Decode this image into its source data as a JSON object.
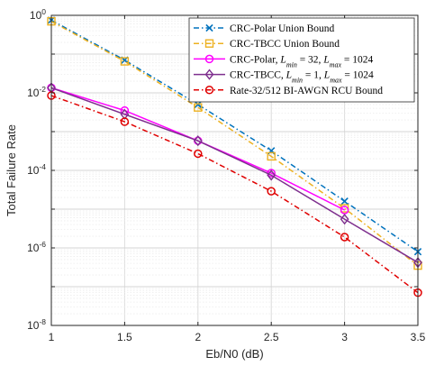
{
  "chart_data": {
    "type": "line",
    "title": "",
    "xlabel": "Eb/N0 (dB)",
    "ylabel": "Total Failure Rate",
    "x": [
      1,
      1.5,
      2,
      2.5,
      3,
      3.5
    ],
    "xlim": [
      1,
      3.5
    ],
    "ylim": [
      1e-08,
      1
    ],
    "yscale": "log",
    "grid": true,
    "legend_position": "top-right",
    "xticks": [
      "1",
      "1.5",
      "2",
      "2.5",
      "3",
      "3.5"
    ],
    "yticks": [
      {
        "base": "10",
        "exp": "0"
      },
      {
        "base": "10",
        "exp": "-2"
      },
      {
        "base": "10",
        "exp": "-4"
      },
      {
        "base": "10",
        "exp": "-6"
      },
      {
        "base": "10",
        "exp": "-8"
      }
    ],
    "series": [
      {
        "name": "CRC-Polar Union Bound",
        "color": "#0072BD",
        "dash": "dash-dot",
        "marker": "x",
        "values": [
          0.75,
          0.07,
          0.005,
          0.00032,
          1.6e-05,
          8e-07
        ]
      },
      {
        "name": "CRC-TBCC Union Bound",
        "color": "#EDB120",
        "dash": "dash-dot",
        "marker": "square",
        "values": [
          0.7,
          0.065,
          0.0042,
          0.00023,
          1.05e-05,
          3.5e-07
        ]
      },
      {
        "name_parts": [
          "CRC-Polar, ",
          "L",
          "min",
          " = 32, ",
          "L",
          "max",
          " = 1024"
        ],
        "color": "#FF00FF",
        "dash": "solid",
        "marker": "circle",
        "values": [
          0.0135,
          0.0035,
          0.00058,
          8.5e-05,
          9.5e-06,
          null
        ]
      },
      {
        "name_parts": [
          "CRC-TBCC, ",
          "L",
          "min",
          " = 1, ",
          "L",
          "max",
          " = 1024"
        ],
        "color": "#7E2F8E",
        "dash": "solid",
        "marker": "diamond",
        "values": [
          0.0135,
          0.0028,
          0.00058,
          7.5e-05,
          5.5e-06,
          4.2e-07
        ]
      },
      {
        "name": "Rate-32/512 BI-AWGN RCU Bound",
        "color": "#E00000",
        "dash": "dash-dot",
        "marker": "circle",
        "values": [
          0.0085,
          0.0018,
          0.00027,
          2.9e-05,
          1.9e-06,
          7e-08
        ]
      }
    ]
  }
}
